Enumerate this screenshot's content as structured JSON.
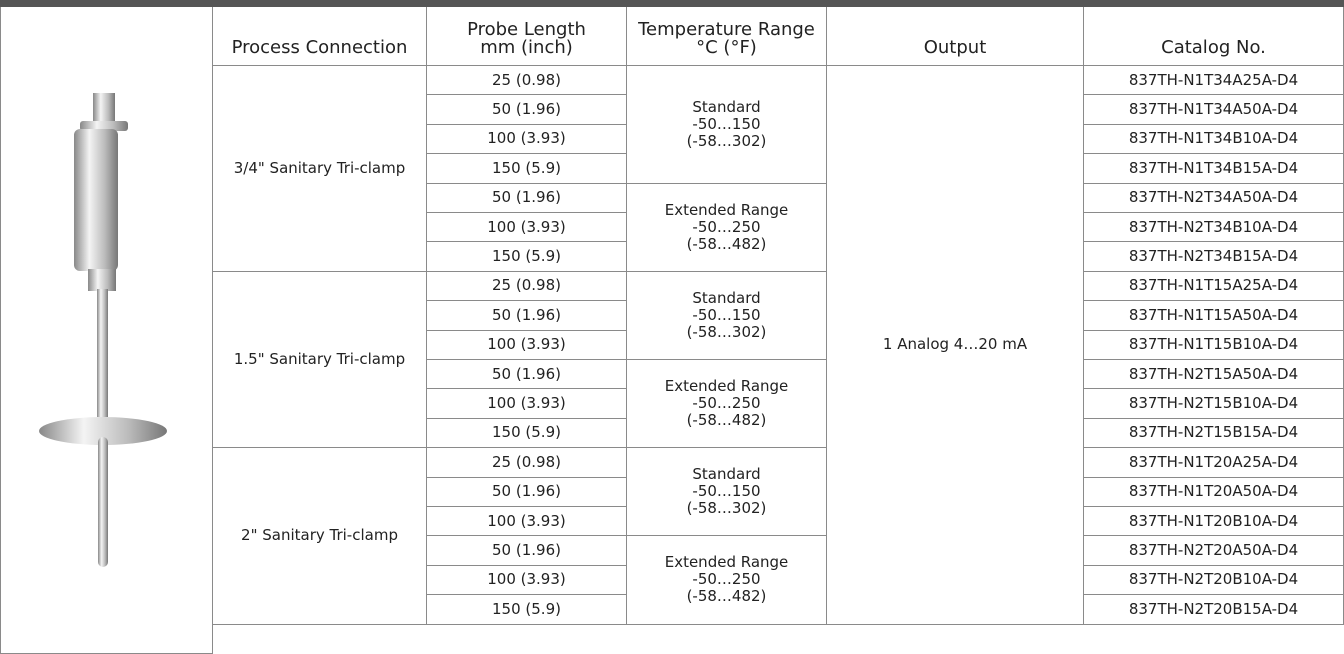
{
  "table": {
    "headers": [
      [
        "Process Connection"
      ],
      [
        "Probe Length",
        "mm (inch)"
      ],
      [
        "Temperature Range",
        "°C (°F)"
      ],
      [
        "Output"
      ],
      [
        "Catalog No."
      ]
    ],
    "connections": [
      {
        "name": "3/4\" Sanitary Tri-clamp",
        "ranges": [
          {
            "label": [
              "Standard",
              "-50…150",
              "(-58…302)"
            ],
            "lengths": [
              "25 (0.98)",
              "50 (1.96)",
              "100 (3.93)",
              "150 (5.9)"
            ]
          },
          {
            "label": [
              "Extended Range",
              "-50…250",
              "(-58…482)"
            ],
            "lengths": [
              "50 (1.96)",
              "100 (3.93)",
              "150 (5.9)"
            ]
          }
        ]
      },
      {
        "name": "1.5\" Sanitary Tri-clamp",
        "ranges": [
          {
            "label": [
              "Standard",
              "-50…150",
              "(-58…302)"
            ],
            "lengths": [
              "25 (0.98)",
              "50 (1.96)",
              "100 (3.93)"
            ]
          },
          {
            "label": [
              "Extended Range",
              "-50…250",
              "(-58…482)"
            ],
            "lengths": [
              "50 (1.96)",
              "100 (3.93)",
              "150 (5.9)"
            ]
          }
        ]
      },
      {
        "name": "2\" Sanitary Tri-clamp",
        "ranges": [
          {
            "label": [
              "Standard",
              "-50…150",
              "(-58…302)"
            ],
            "lengths": [
              "25 (0.98)",
              "50 (1.96)",
              "100 (3.93)"
            ]
          },
          {
            "label": [
              "Extended Range",
              "-50…250",
              "(-58…482)"
            ],
            "lengths": [
              "50 (1.96)",
              "100 (3.93)",
              "150 (5.9)"
            ]
          }
        ]
      }
    ],
    "output": "1 Analog 4…20 mA",
    "catalog": [
      "837TH-N1T34A25A-D4",
      "837TH-N1T34A50A-D4",
      "837TH-N1T34B10A-D4",
      "837TH-N1T34B15A-D4",
      "837TH-N2T34A50A-D4",
      "837TH-N2T34B10A-D4",
      "837TH-N2T34B15A-D4",
      "837TH-N1T15A25A-D4",
      "837TH-N1T15A50A-D4",
      "837TH-N1T15B10A-D4",
      "837TH-N2T15A50A-D4",
      "837TH-N2T15B10A-D4",
      "837TH-N2T15B15A-D4",
      "837TH-N1T20A25A-D4",
      "837TH-N1T20A50A-D4",
      "837TH-N1T20B10A-D4",
      "837TH-N2T20A50A-D4",
      "837TH-N2T20B10A-D4",
      "837TH-N2T20B15A-D4"
    ]
  }
}
